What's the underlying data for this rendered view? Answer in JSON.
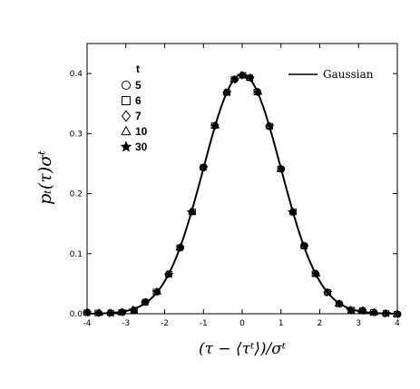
{
  "chart_data": {
    "type": "scatter",
    "xlabel": "(τ − ⟨τᵗ⟩)/σᵗ",
    "ylabel": "pₜ(τ)σᵗ",
    "xlim": [
      -4,
      4
    ],
    "ylim": [
      0,
      0.45
    ],
    "x_ticks": [
      "-4",
      "-3",
      "-2",
      "-1",
      "0",
      "1",
      "2",
      "3",
      "4"
    ],
    "y_ticks": [
      "0.0",
      "0.1",
      "0.2",
      "0.3",
      "0.4"
    ],
    "legend_title": "t",
    "series": [
      {
        "name": "5",
        "marker": "circle"
      },
      {
        "name": "6",
        "marker": "square"
      },
      {
        "name": "7",
        "marker": "diamond"
      },
      {
        "name": "10",
        "marker": "triangle"
      },
      {
        "name": "30",
        "marker": "star"
      }
    ],
    "reference_curve": {
      "name": "Gaussian",
      "mean": 0,
      "sd": 1
    },
    "x": [
      -4.0,
      -3.7,
      -3.4,
      -3.1,
      -2.8,
      -2.5,
      -2.2,
      -1.9,
      -1.6,
      -1.3,
      -1.0,
      -0.7,
      -0.4,
      -0.2,
      0.0,
      0.2,
      0.4,
      0.7,
      1.0,
      1.3,
      1.6,
      1.9,
      2.2,
      2.5,
      2.8,
      3.1,
      3.4,
      3.7,
      4.0
    ],
    "y": [
      0.0001,
      0.0004,
      0.0012,
      0.0033,
      0.0079,
      0.0175,
      0.0355,
      0.0656,
      0.111,
      0.1714,
      0.242,
      0.3123,
      0.3683,
      0.391,
      0.3989,
      0.391,
      0.3683,
      0.3123,
      0.242,
      0.1714,
      0.111,
      0.0656,
      0.0355,
      0.0175,
      0.0079,
      0.0033,
      0.0012,
      0.0004,
      0.0001
    ],
    "grid": false,
    "legend_position": "top-left",
    "reference_legend_position": "top-right"
  }
}
